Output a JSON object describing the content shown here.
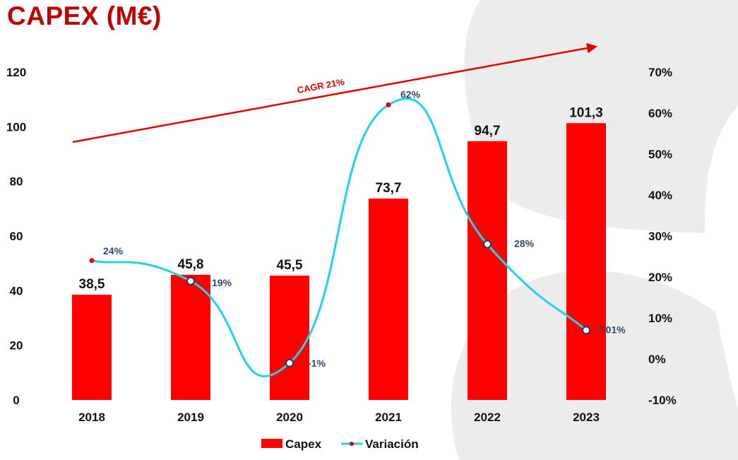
{
  "title": "CAPEX (M€)",
  "colors": {
    "bar": "#ff0000",
    "line": "#1fd3f0",
    "marker_fill": "#ffffff",
    "trend": "#e00000",
    "title": "#c00000",
    "background_shape": "#ececec"
  },
  "chart_data": {
    "type": "bar+line",
    "categories": [
      "2018",
      "2019",
      "2020",
      "2021",
      "2022",
      "2023"
    ],
    "series": [
      {
        "name": "Capex",
        "type": "bar",
        "axis": "left",
        "values": [
          38.5,
          45.8,
          45.5,
          73.7,
          94.7,
          101.3
        ],
        "labels": [
          "38,5",
          "45,8",
          "45,5",
          "73,7",
          "94,7",
          "101,3"
        ]
      },
      {
        "name": "Variación",
        "type": "line",
        "axis": "right",
        "unit": "%",
        "values": [
          24,
          19,
          -1,
          62,
          28,
          7.01
        ],
        "labels": [
          "24%",
          "19%",
          "-1%",
          "62%",
          "28%",
          "7,01%"
        ]
      }
    ],
    "y_left": {
      "min": 0,
      "max": 120,
      "step": 20,
      "ticks": [
        "0",
        "20",
        "40",
        "60",
        "80",
        "100",
        "120"
      ]
    },
    "y_right": {
      "min": -10,
      "max": 70,
      "step": 10,
      "ticks": [
        "-10%",
        "0%",
        "10%",
        "20%",
        "30%",
        "40%",
        "50%",
        "60%",
        "70%"
      ]
    },
    "annotation": {
      "text": "CAGR 21%",
      "type": "trend-arrow"
    },
    "legend": {
      "position": "bottom",
      "items": [
        "Capex",
        "Variación"
      ]
    },
    "grid": false
  }
}
